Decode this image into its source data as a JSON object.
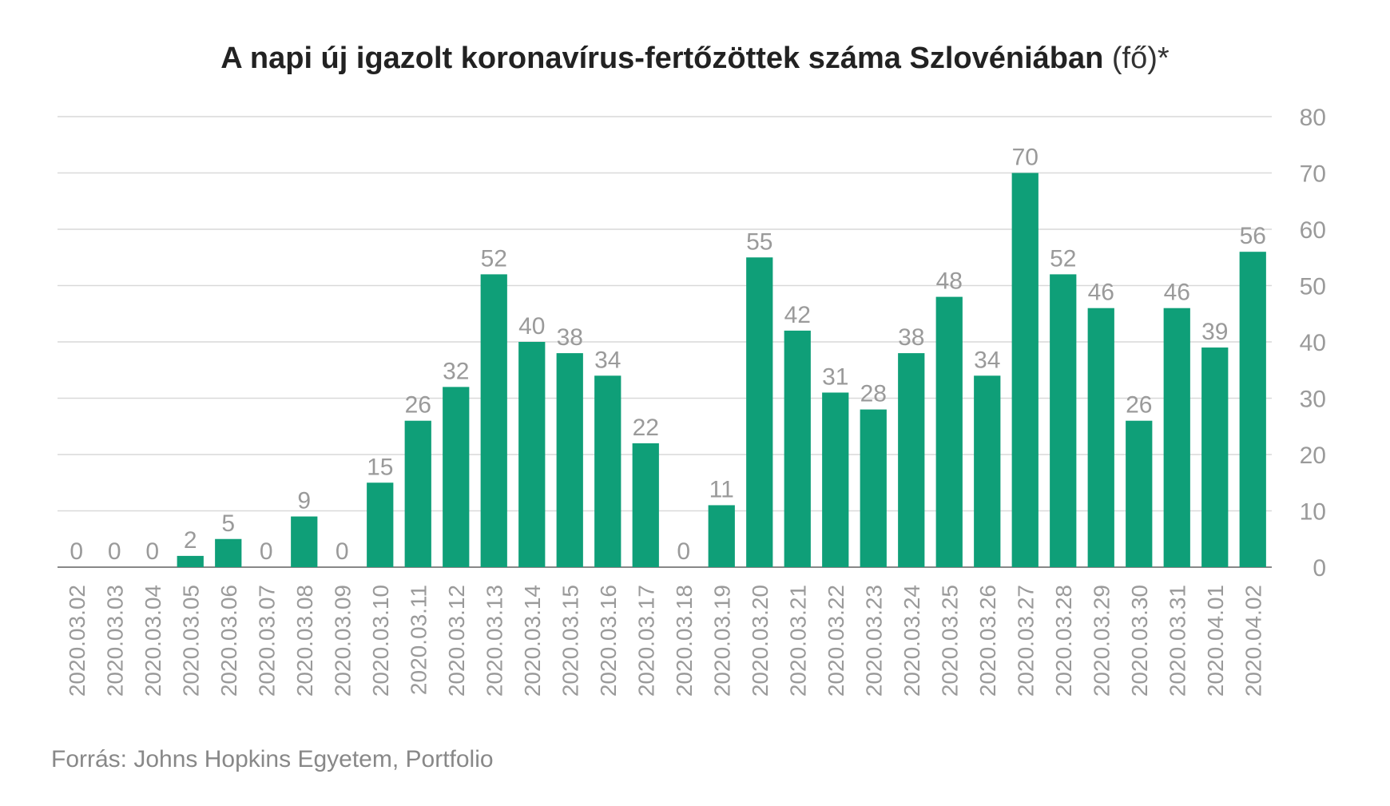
{
  "title": {
    "main": "A napi új igazolt koronavírus-fertőzöttek száma Szlovéniában",
    "unit": "(fő)*"
  },
  "source": "Forrás: Johns Hopkins Egyetem, Portfolio",
  "colors": {
    "bar": "#0f9f78",
    "grid": "#d9d9d9",
    "baseline": "#888888",
    "label": "#9a9a9a",
    "title": "#222222"
  },
  "chart_data": {
    "type": "bar",
    "categories": [
      "2020.03.02",
      "2020.03.03",
      "2020.03.04",
      "2020.03.05",
      "2020.03.06",
      "2020.03.07",
      "2020.03.08",
      "2020.03.09",
      "2020.03.10",
      "2020.03.11",
      "2020.03.12",
      "2020.03.13",
      "2020.03.14",
      "2020.03.15",
      "2020.03.16",
      "2020.03.17",
      "2020.03.18",
      "2020.03.19",
      "2020.03.20",
      "2020.03.21",
      "2020.03.22",
      "2020.03.23",
      "2020.03.24",
      "2020.03.25",
      "2020.03.26",
      "2020.03.27",
      "2020.03.28",
      "2020.03.29",
      "2020.03.30",
      "2020.03.31",
      "2020.04.01",
      "2020.04.02"
    ],
    "values": [
      0,
      0,
      0,
      2,
      5,
      0,
      9,
      0,
      15,
      26,
      32,
      52,
      40,
      38,
      34,
      22,
      0,
      11,
      55,
      42,
      31,
      28,
      38,
      48,
      34,
      70,
      52,
      46,
      26,
      46,
      39,
      56
    ],
    "ylim": [
      0,
      80
    ],
    "yticks": [
      0,
      10,
      20,
      30,
      40,
      50,
      60,
      70,
      80
    ],
    "y_axis_side": "right",
    "grid": true,
    "data_labels": true
  }
}
